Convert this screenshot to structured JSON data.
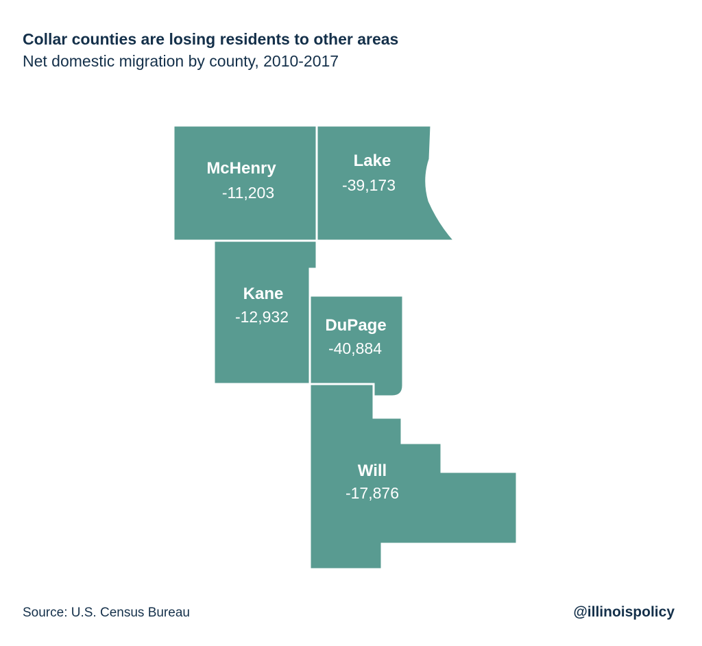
{
  "title": "Collar counties are losing residents to other areas",
  "subtitle": "Net domestic migration by county, 2010-2017",
  "source": "Source: U.S. Census Bureau",
  "handle": "@illinoispolicy",
  "colors": {
    "county_fill": "#599b91",
    "county_border": "#ffffff",
    "text": "#14304a"
  },
  "counties": [
    {
      "name": "McHenry",
      "value": "-11,203"
    },
    {
      "name": "Lake",
      "value": "-39,173"
    },
    {
      "name": "Kane",
      "value": "-12,932"
    },
    {
      "name": "DuPage",
      "value": "-40,884"
    },
    {
      "name": "Will",
      "value": "-17,876"
    }
  ]
}
